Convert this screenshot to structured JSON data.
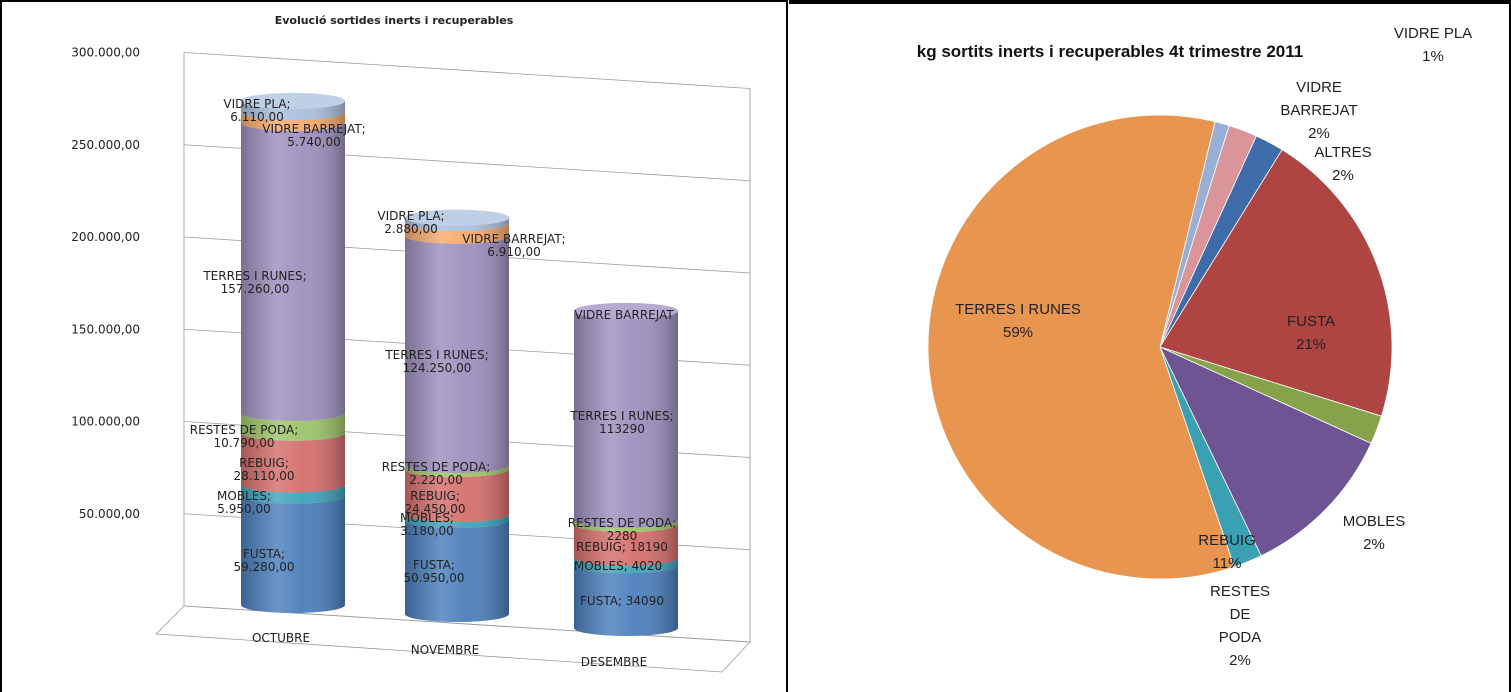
{
  "colors": {
    "FUSTA": "#4a7ebb",
    "MOBLES": "#3ca3b8",
    "REBUIG": "#d46e6b",
    "RESTES DE PODA": "#9cc46a",
    "TERRES I RUNES": "#9d8fbd",
    "VIDRE BARREJAT": "#f6a96b",
    "VIDRE PLA": "#a9bfdc"
  },
  "chart_data": [
    {
      "type": "bar",
      "subtype": "stacked-3d-cylinder",
      "title": "Evolució sortides inerts i recuperables",
      "categories": [
        "OCTUBRE",
        "NOVEMBRE",
        "DESEMBRE"
      ],
      "ylim": [
        0,
        300000
      ],
      "yticks": [
        "50.000,00",
        "100.000,00",
        "150.000,00",
        "200.000,00",
        "250.000,00",
        "300.000,00"
      ],
      "ytick_values": [
        50000,
        100000,
        150000,
        200000,
        250000,
        300000
      ],
      "grid": true,
      "series": [
        {
          "name": "FUSTA",
          "values": [
            59280,
            50950,
            34090
          ],
          "labels": [
            [
              "FUSTA;",
              "59.280,00"
            ],
            [
              "FUSTA;",
              "50.950,00"
            ],
            [
              "FUSTA; 34090"
            ]
          ]
        },
        {
          "name": "MOBLES",
          "values": [
            5950,
            3180,
            4020
          ],
          "labels": [
            [
              "MOBLES;",
              "5.950,00"
            ],
            [
              "MOBLES;",
              "3.180,00"
            ],
            [
              "MOBLES; 4020"
            ]
          ]
        },
        {
          "name": "REBUIG",
          "values": [
            28110,
            24450,
            18190
          ],
          "labels": [
            [
              "REBUIG;",
              "28.110,00"
            ],
            [
              "REBUIG;",
              "24.450,00"
            ],
            [
              "REBUIG; 18190"
            ]
          ]
        },
        {
          "name": "RESTES DE PODA",
          "values": [
            10790,
            2220,
            2280
          ],
          "labels": [
            [
              "RESTES DE PODA;",
              "10.790,00"
            ],
            [
              "RESTES DE PODA;",
              "2.220,00"
            ],
            [
              "RESTES DE PODA;",
              "2280"
            ]
          ]
        },
        {
          "name": "TERRES I RUNES",
          "values": [
            157260,
            124250,
            113290
          ],
          "labels": [
            [
              "TERRES I RUNES;",
              "157.260,00"
            ],
            [
              "TERRES I RUNES;",
              "124.250,00"
            ],
            [
              "TERRES I RUNES;",
              "113290"
            ]
          ]
        },
        {
          "name": "VIDRE BARREJAT",
          "values": [
            5740,
            6910,
            0
          ],
          "labels": [
            [
              "VIDRE BARREJAT;",
              "5.740,00"
            ],
            [
              "VIDRE BARREJAT;",
              "6.910,00"
            ],
            [
              "VIDRE BARREJAT"
            ]
          ]
        },
        {
          "name": "VIDRE PLA",
          "values": [
            6110,
            2880,
            0
          ],
          "labels": [
            [
              "VIDRE PLA;",
              "6.110,00"
            ],
            [
              "VIDRE PLA;",
              "2.880,00"
            ],
            []
          ]
        }
      ]
    },
    {
      "type": "pie",
      "title": "kg sortits inerts i recuperables 4t trimestre 2011",
      "slices": [
        {
          "name": "VIDRE PLA",
          "percent": 1,
          "label": [
            "VIDRE PLA",
            "1%"
          ],
          "color": "#99afd6"
        },
        {
          "name": "VIDRE BARREJAT",
          "percent": 2,
          "label": [
            "VIDRE",
            "BARREJAT",
            "2%"
          ],
          "color": "#d9959a"
        },
        {
          "name": "ALTRES",
          "percent": 2,
          "label": [
            "ALTRES",
            "2%"
          ],
          "color": "#3d6ca8"
        },
        {
          "name": "FUSTA",
          "percent": 21,
          "label": [
            "FUSTA",
            "21%"
          ],
          "color": "#ae4542"
        },
        {
          "name": "MOBLES",
          "percent": 2,
          "label": [
            "MOBLES",
            "2%"
          ],
          "color": "#86a24b"
        },
        {
          "name": "REBUIG",
          "percent": 11,
          "label": [
            "REBUIG",
            "11%"
          ],
          "color": "#6f5493"
        },
        {
          "name": "RESTES DE PODA",
          "percent": 2,
          "label": [
            "RESTES",
            "DE",
            "PODA",
            "2%"
          ],
          "color": "#3aa0b3"
        },
        {
          "name": "TERRES I RUNES",
          "percent": 59,
          "label": [
            "TERRES I RUNES",
            "59%"
          ],
          "color": "#e8954f"
        }
      ]
    }
  ]
}
